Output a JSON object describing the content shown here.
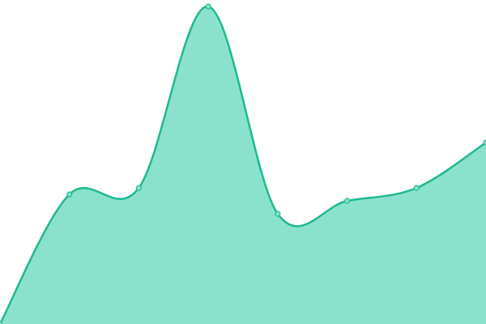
{
  "chart_data": {
    "type": "area",
    "categories": [
      null,
      null,
      null,
      null,
      null,
      null,
      null,
      null
    ],
    "values": [
      0,
      40,
      42,
      98,
      34,
      38,
      42,
      56
    ],
    "ylim": [
      0,
      100
    ],
    "color": "#1fb98e",
    "fill": "#8ae2cd",
    "smooth": true,
    "markers": true
  }
}
